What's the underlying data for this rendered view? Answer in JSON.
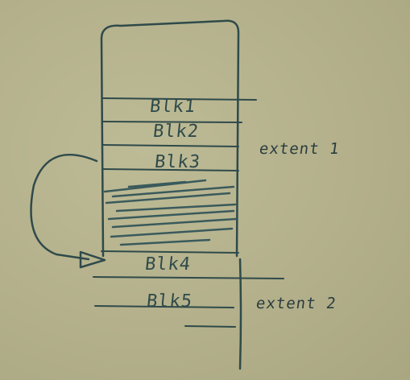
{
  "diagram": {
    "blocks": [
      {
        "label": "Blk1"
      },
      {
        "label": "Blk2"
      },
      {
        "label": "Blk3"
      },
      {
        "label": "Blk4"
      },
      {
        "label": "Blk5"
      }
    ],
    "extents": [
      {
        "label": "extent 1"
      },
      {
        "label": "extent 2"
      }
    ],
    "ink_color": "#2f4a4a"
  }
}
